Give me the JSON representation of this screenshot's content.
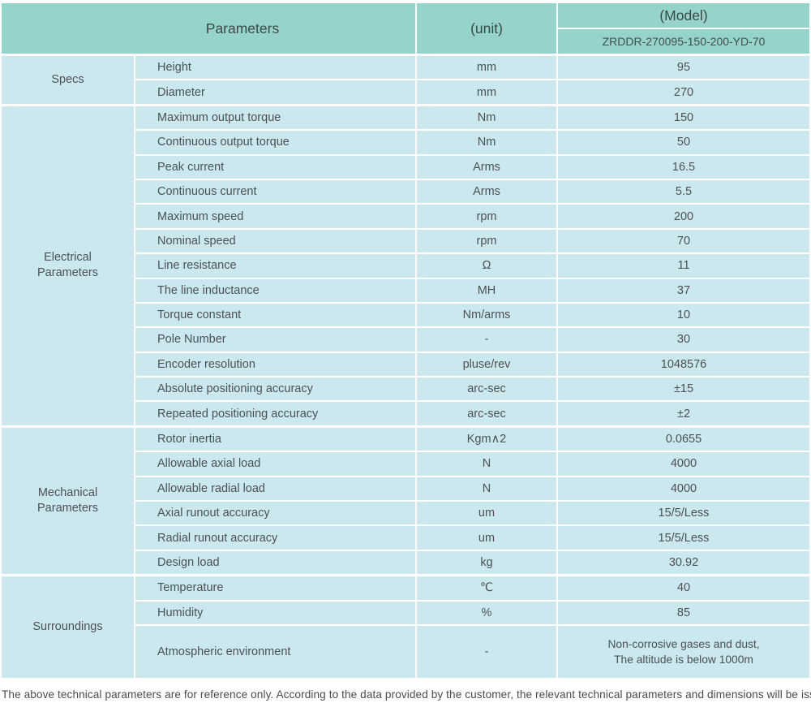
{
  "colors": {
    "header_bg": "#96d4cb",
    "row_bg": "#cbe8ee",
    "text": "#4a5156"
  },
  "header": {
    "parameters_label": "Parameters",
    "unit_label": "(unit)",
    "model_label": "(Model)",
    "model_value": "ZRDDR-270095-150-200-YD-70"
  },
  "groups": [
    {
      "name": "Specs",
      "rows": [
        {
          "param": "Height",
          "unit": "mm",
          "value": "95"
        },
        {
          "param": "Diameter",
          "unit": "mm",
          "value": "270"
        }
      ]
    },
    {
      "name": "Electrical Parameters",
      "rows": [
        {
          "param": "Maximum output torque",
          "unit": "Nm",
          "value": "150"
        },
        {
          "param": "Continuous output torque",
          "unit": "Nm",
          "value": "50"
        },
        {
          "param": "Peak current",
          "unit": "Arms",
          "value": "16.5"
        },
        {
          "param": "Continuous current",
          "unit": "Arms",
          "value": "5.5"
        },
        {
          "param": "Maximum speed",
          "unit": "rpm",
          "value": "200"
        },
        {
          "param": "Nominal speed",
          "unit": "rpm",
          "value": "70"
        },
        {
          "param": "Line resistance",
          "unit": "Ω",
          "value": "11"
        },
        {
          "param": "The line inductance",
          "unit": "MH",
          "value": "37"
        },
        {
          "param": "Torque constant",
          "unit": "Nm/arms",
          "value": "10"
        },
        {
          "param": "Pole Number",
          "unit": "-",
          "value": "30"
        },
        {
          "param": "Encoder resolution",
          "unit": "pluse/rev",
          "value": "1048576"
        },
        {
          "param": "Absolute positioning accuracy",
          "unit": "arc-sec",
          "value": "±15"
        },
        {
          "param": "Repeated positioning accuracy",
          "unit": "arc-sec",
          "value": "±2"
        }
      ]
    },
    {
      "name": "Mechanical Parameters",
      "rows": [
        {
          "param": "Rotor inertia",
          "unit": "Kgm∧2",
          "value": "0.0655"
        },
        {
          "param": "Allowable axial load",
          "unit": "N",
          "value": "4000"
        },
        {
          "param": "Allowable radial load",
          "unit": "N",
          "value": "4000"
        },
        {
          "param": "Axial runout accuracy",
          "unit": "um",
          "value": "15/5/Less"
        },
        {
          "param": "Radial runout accuracy",
          "unit": "um",
          "value": "15/5/Less"
        },
        {
          "param": "Design load",
          "unit": "kg",
          "value": "30.92"
        }
      ]
    },
    {
      "name": "Surroundings",
      "rows": [
        {
          "param": "Temperature",
          "unit": "℃",
          "value": "40"
        },
        {
          "param": "Humidity",
          "unit": "%",
          "value": "85"
        },
        {
          "param": "Atmospheric environment",
          "unit": "-",
          "value_lines": [
            "Non-corrosive gases and dust,",
            "The altitude is below 1000m"
          ]
        }
      ]
    }
  ],
  "footer": {
    "note": "The above technical parameters are for reference only. According to the data provided by the customer, the relevant technical parameters and dimensions will be issued."
  }
}
